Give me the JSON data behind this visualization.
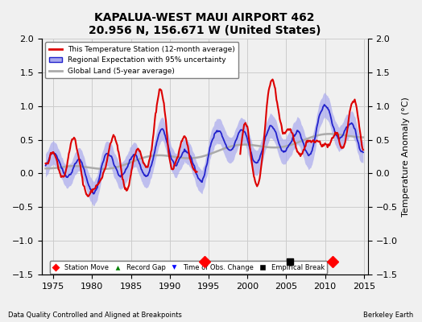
{
  "title": "KAPALUA-WEST MAUI AIRPORT 462",
  "subtitle": "20.956 N, 156.671 W (United States)",
  "ylabel": "Temperature Anomaly (°C)",
  "xlim": [
    1973.5,
    2015.5
  ],
  "ylim": [
    -1.5,
    2.0
  ],
  "yticks": [
    -1.5,
    -1.0,
    -0.5,
    0.0,
    0.5,
    1.0,
    1.5,
    2.0
  ],
  "xticks": [
    1975,
    1980,
    1985,
    1990,
    1995,
    2000,
    2005,
    2010,
    2015
  ],
  "station_color": "#dd0000",
  "regional_color": "#2222cc",
  "regional_fill_color": "#aaaaee",
  "global_color": "#aaaaaa",
  "bg_color": "#f0f0f0",
  "grid_color": "#cccccc",
  "footer_left": "Data Quality Controlled and Aligned at Breakpoints",
  "footer_right": "Berkeley Earth",
  "station_move_years": [
    1994.5,
    2011.0
  ],
  "empirical_break_years": [
    2005.5
  ],
  "legend_labels": [
    "This Temperature Station (12-month average)",
    "Regional Expectation with 95% uncertainty",
    "Global Land (5-year average)"
  ],
  "legend_marker_labels": [
    "Station Move",
    "Record Gap",
    "Time of Obs. Change",
    "Empirical Break"
  ]
}
